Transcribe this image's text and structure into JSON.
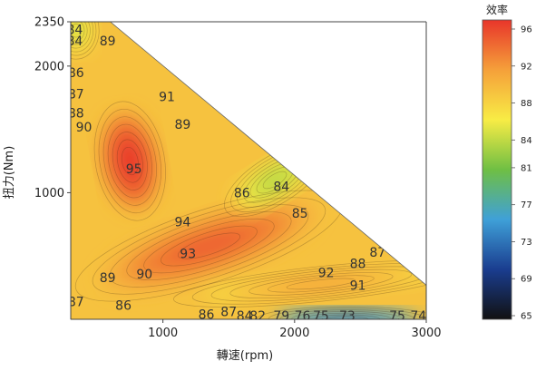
{
  "chart_data": {
    "type": "heatmap",
    "subtype": "efficiency contour map",
    "xlabel": "轉速(rpm)",
    "ylabel": "扭力(Nm)",
    "xlim": [
      300,
      3000
    ],
    "ylim": [
      0,
      2350
    ],
    "x_ticks": [
      1000,
      2000,
      3000
    ],
    "y_ticks": [
      1000,
      2000,
      2350
    ],
    "colorbar": {
      "title": "效率",
      "range": [
        65,
        96
      ],
      "ticks": [
        96,
        92,
        88,
        84,
        81,
        77,
        73,
        69,
        65
      ],
      "colors": [
        "#e8352a",
        "#f5a03a",
        "#f8ec45",
        "#6fbf44",
        "#3fa0d8",
        "#1a3d8f",
        "#111111"
      ]
    },
    "valid_region_boundary": [
      {
        "x": 300,
        "y": 2350
      },
      {
        "x": 600,
        "y": 2350
      },
      {
        "x": 3000,
        "y": 270
      },
      {
        "x": 3000,
        "y": 0
      },
      {
        "x": 300,
        "y": 0
      }
    ],
    "contour_labels": [
      {
        "x": 330,
        "y": 2290,
        "value": 84
      },
      {
        "x": 330,
        "y": 2200,
        "value": 84
      },
      {
        "x": 580,
        "y": 2200,
        "value": 89
      },
      {
        "x": 340,
        "y": 1950,
        "value": 86
      },
      {
        "x": 340,
        "y": 1780,
        "value": 87
      },
      {
        "x": 340,
        "y": 1630,
        "value": 88
      },
      {
        "x": 400,
        "y": 1520,
        "value": 90
      },
      {
        "x": 1030,
        "y": 1760,
        "value": 91
      },
      {
        "x": 1150,
        "y": 1540,
        "value": 89
      },
      {
        "x": 780,
        "y": 1190,
        "value": 95
      },
      {
        "x": 1900,
        "y": 1050,
        "value": 84
      },
      {
        "x": 1600,
        "y": 1000,
        "value": 86
      },
      {
        "x": 2040,
        "y": 840,
        "value": 85
      },
      {
        "x": 1150,
        "y": 770,
        "value": 94
      },
      {
        "x": 2630,
        "y": 530,
        "value": 87
      },
      {
        "x": 2480,
        "y": 440,
        "value": 88
      },
      {
        "x": 1190,
        "y": 520,
        "value": 93
      },
      {
        "x": 2240,
        "y": 370,
        "value": 92
      },
      {
        "x": 580,
        "y": 330,
        "value": 89
      },
      {
        "x": 860,
        "y": 360,
        "value": 90
      },
      {
        "x": 2480,
        "y": 270,
        "value": 91
      },
      {
        "x": 340,
        "y": 140,
        "value": 87
      },
      {
        "x": 700,
        "y": 110,
        "value": 86
      },
      {
        "x": 1330,
        "y": 40,
        "value": 86
      },
      {
        "x": 1500,
        "y": 60,
        "value": 87
      },
      {
        "x": 1620,
        "y": 0,
        "value": 84
      },
      {
        "x": 1720,
        "y": 0,
        "value": 82
      },
      {
        "x": 1900,
        "y": 0,
        "value": 79
      },
      {
        "x": 2060,
        "y": 0,
        "value": 76
      },
      {
        "x": 2200,
        "y": 0,
        "value": 75
      },
      {
        "x": 2400,
        "y": 0,
        "value": 73
      },
      {
        "x": 2780,
        "y": 0,
        "value": 75
      },
      {
        "x": 2940,
        "y": 0,
        "value": 74
      }
    ],
    "efficiency_regions": [
      {
        "name": "low-speed-sweet-spot",
        "peak": 96,
        "center": {
          "x": 750,
          "y": 1250
        },
        "rx": 210,
        "ry": 380,
        "rotate": -10
      },
      {
        "name": "diagonal-high-zone",
        "peak": 94,
        "center": {
          "x": 1350,
          "y": 580
        },
        "rx": 850,
        "ry": 230,
        "rotate": -18
      },
      {
        "name": "low-torque-band",
        "peak": 91,
        "center": {
          "x": 2200,
          "y": 280
        },
        "rx": 900,
        "ry": 110,
        "rotate": -6
      },
      {
        "name": "high-torque-diag-low",
        "min": 83,
        "center": {
          "x": 1850,
          "y": 1100
        },
        "rx": 350,
        "ry": 150,
        "rotate": -32
      },
      {
        "name": "bottom-strip-low",
        "min": 73,
        "center": {
          "x": 2400,
          "y": 0
        },
        "rx": 550,
        "ry": 80,
        "rotate": 0
      },
      {
        "name": "top-left-low",
        "min": 84,
        "center": {
          "x": 340,
          "y": 2280
        },
        "rx": 140,
        "ry": 180,
        "rotate": 0
      }
    ]
  }
}
